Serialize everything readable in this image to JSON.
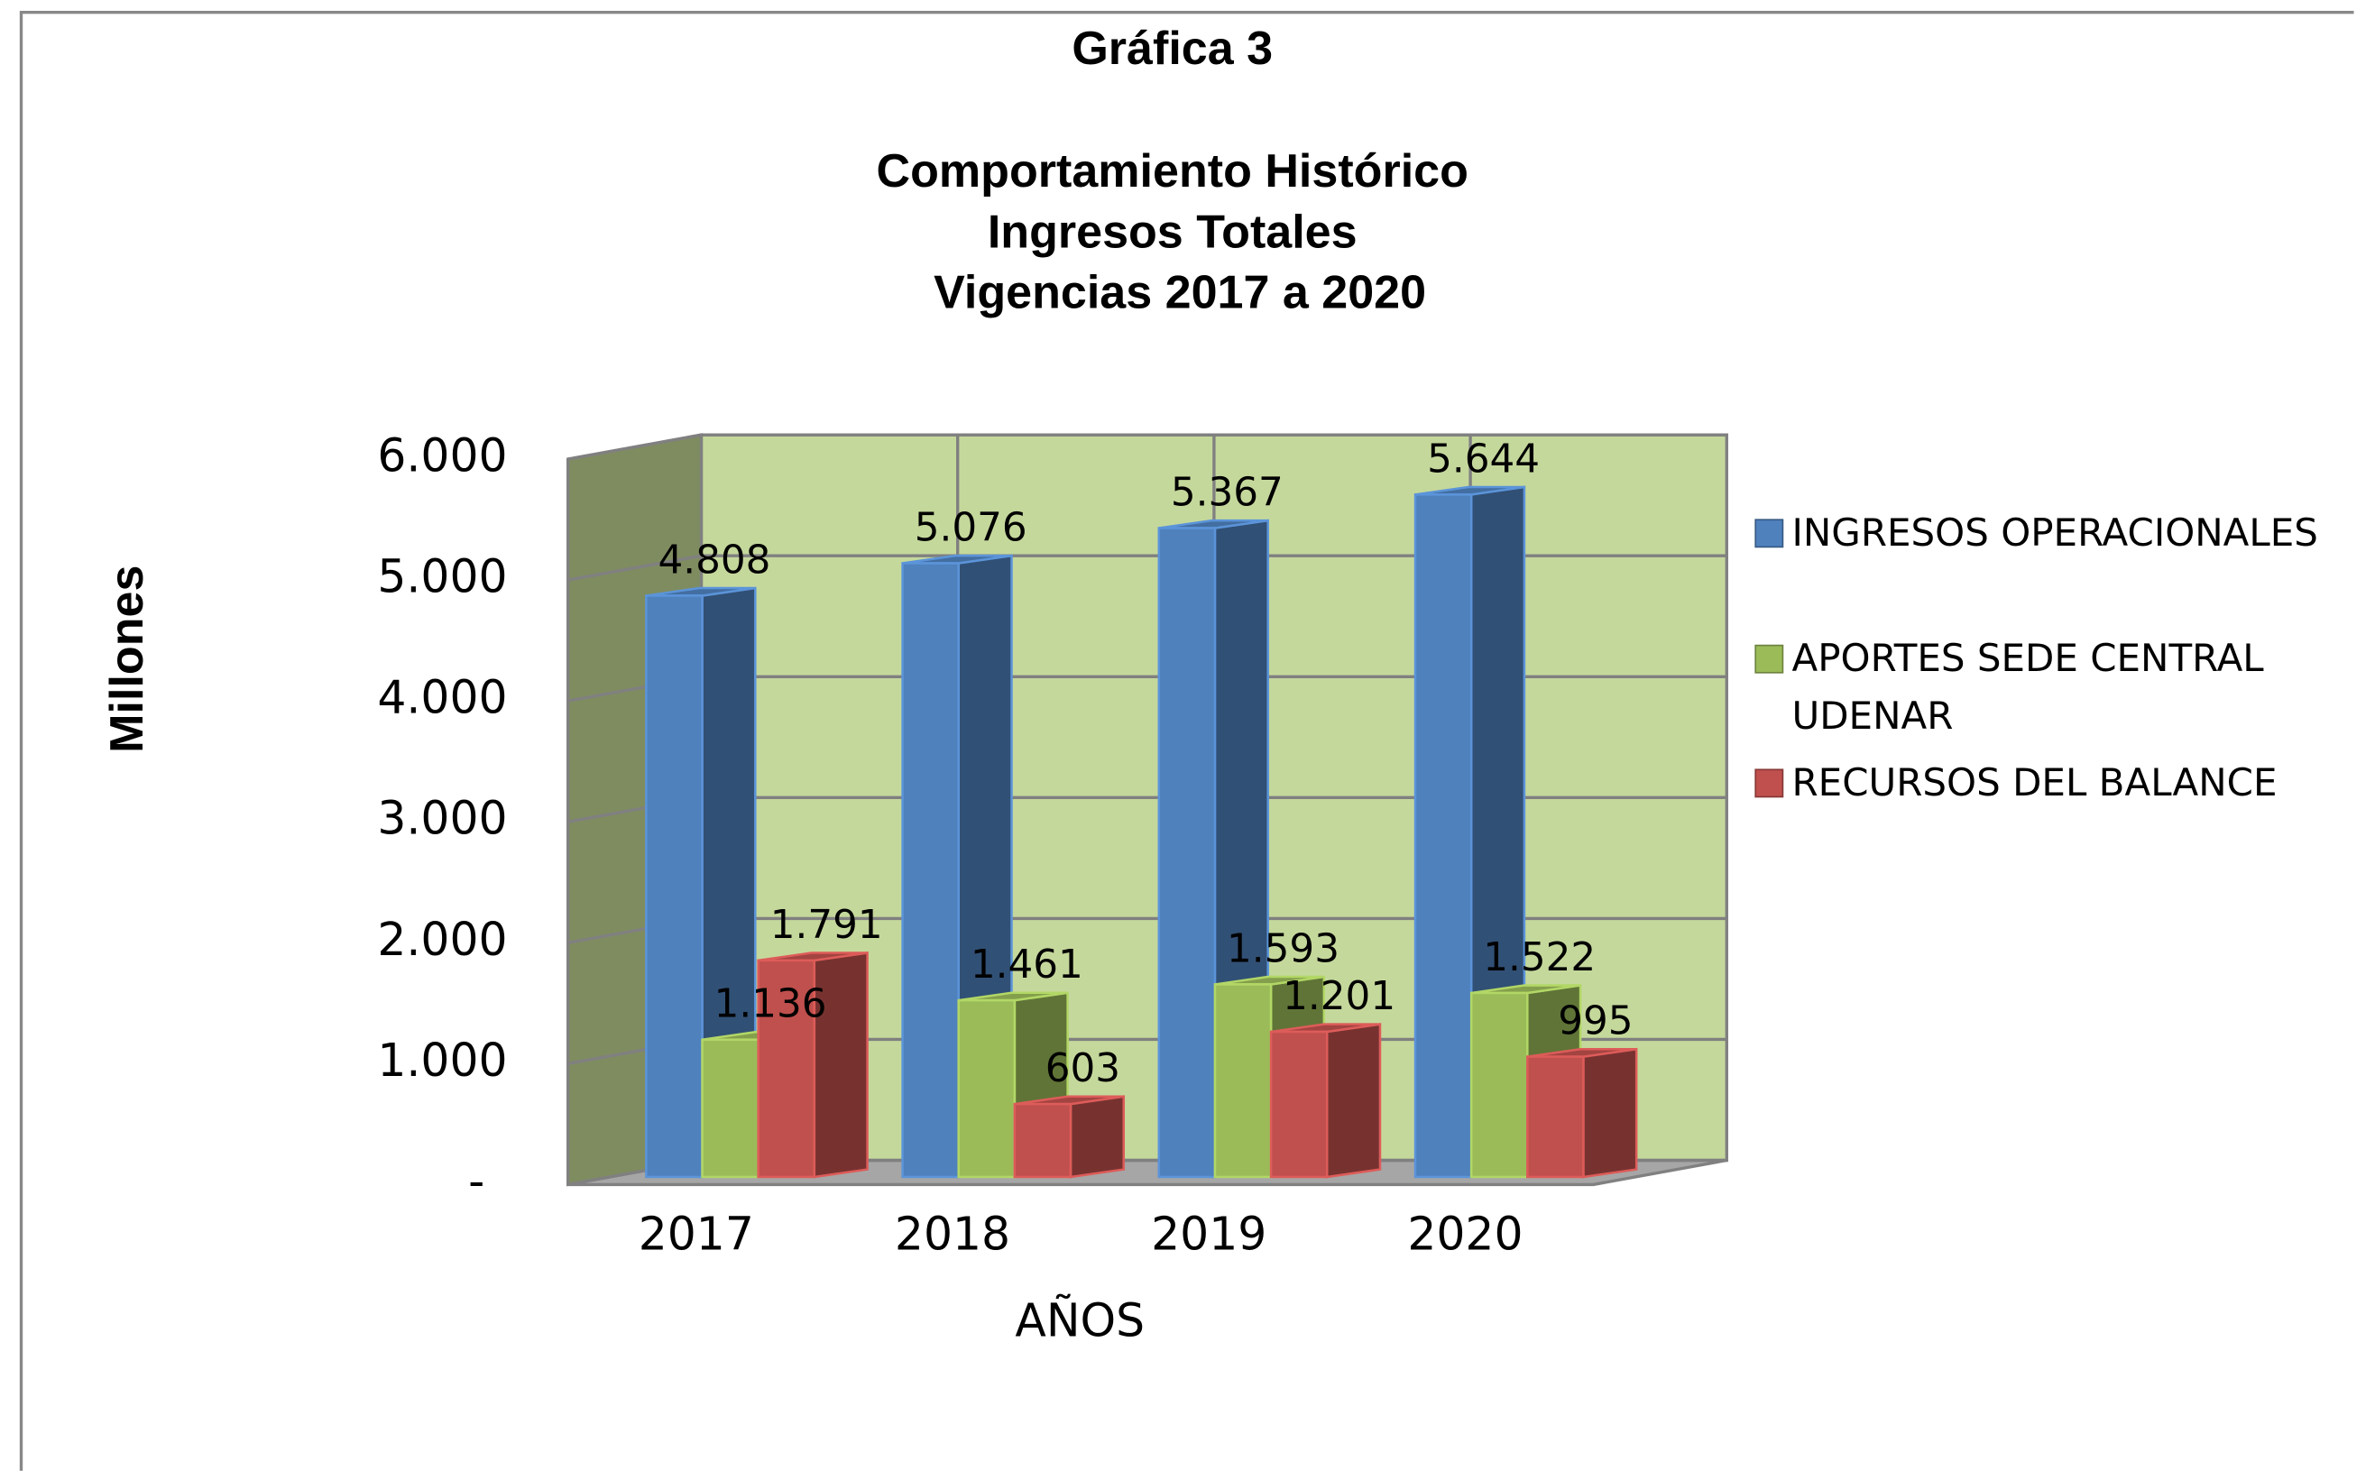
{
  "chart_data": {
    "type": "bar3d",
    "title": "Gráfica 3",
    "subtitle": [
      "Comportamiento Histórico",
      "Ingresos Totales",
      "Vigencias 2017 a 2020"
    ],
    "y_label": "Millones",
    "x_label": "AÑOS",
    "categories": [
      "2017",
      "2018",
      "2019",
      "2020"
    ],
    "series": [
      {
        "name": "INGRESOS OPERACIONALES",
        "color": "#4f81bd",
        "values": [
          4808,
          5076,
          5367,
          5644
        ],
        "value_labels": [
          "4.808",
          "5.076",
          "5.367",
          "5.644"
        ]
      },
      {
        "name": "APORTES SEDE CENTRAL UDENAR",
        "color": "#9bbb59",
        "values": [
          1136,
          1461,
          1593,
          1522
        ],
        "value_labels": [
          "1.136",
          "1.461",
          "1.593",
          "1.522"
        ]
      },
      {
        "name": "RECURSOS DEL BALANCE",
        "color": "#c0504d",
        "values": [
          1791,
          603,
          1201,
          995
        ],
        "value_labels": [
          "1.791",
          "603",
          "1.201",
          "995"
        ]
      }
    ],
    "ylim": [
      0,
      6000
    ],
    "yticks": [
      {
        "value": 0,
        "label": "-"
      },
      {
        "value": 1000,
        "label": "1.000"
      },
      {
        "value": 2000,
        "label": "2.000"
      },
      {
        "value": 3000,
        "label": "3.000"
      },
      {
        "value": 4000,
        "label": "4.000"
      },
      {
        "value": 5000,
        "label": "5.000"
      },
      {
        "value": 6000,
        "label": "6.000"
      }
    ],
    "grid": true,
    "legend": "right"
  }
}
